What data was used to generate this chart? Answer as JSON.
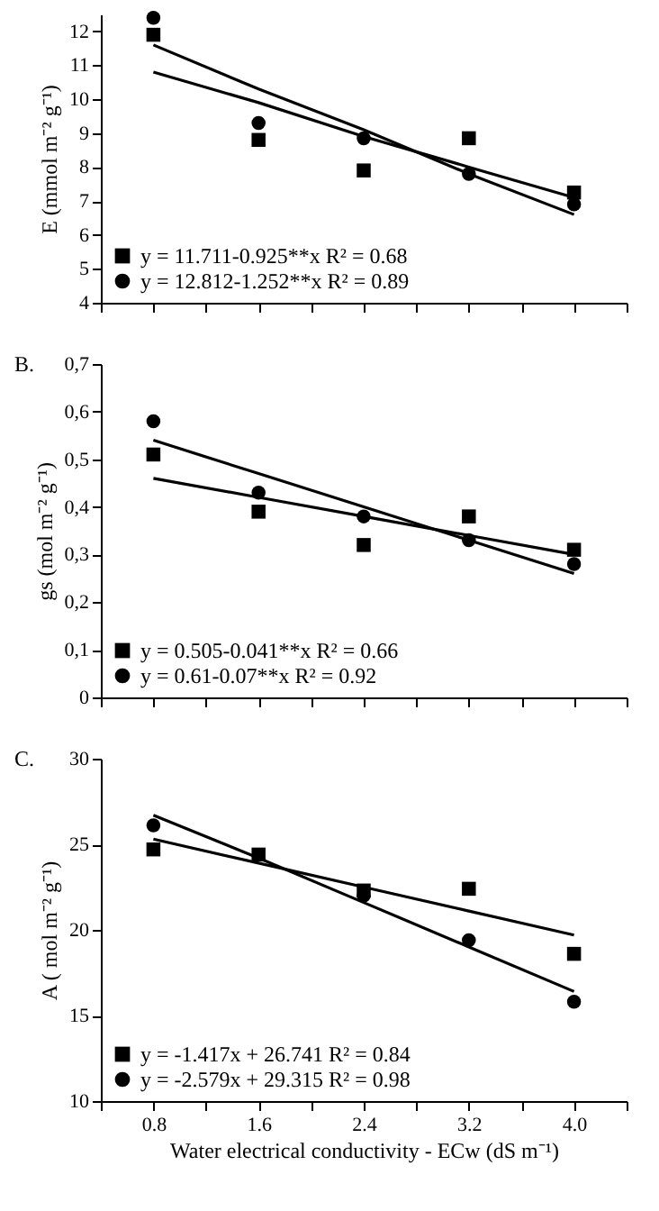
{
  "chart_data": [
    {
      "type": "scatter",
      "ylabel": "E (mmol m⁻² g⁻¹)",
      "x": [
        0.8,
        1.6,
        2.4,
        3.2,
        4.0
      ],
      "xlim": [
        0.4,
        4.4
      ],
      "xticks": [
        {
          "value": 0.4,
          "label": null
        },
        {
          "value": 0.8,
          "label": null
        },
        {
          "value": 1.2,
          "label": null
        },
        {
          "value": 1.6,
          "label": null
        },
        {
          "value": 2.0,
          "label": null
        },
        {
          "value": 2.4,
          "label": null
        },
        {
          "value": 2.8,
          "label": null
        },
        {
          "value": 3.2,
          "label": null
        },
        {
          "value": 3.6,
          "label": null
        },
        {
          "value": 4.0,
          "label": null
        },
        {
          "value": 4.4,
          "label": null
        }
      ],
      "ylim": [
        4,
        12.5
      ],
      "yticks": [
        4,
        5,
        6,
        7,
        8,
        9,
        10,
        11,
        12
      ],
      "tick_labels": "y",
      "grid": false,
      "legend": "bottom left",
      "series": [
        {
          "name": "y = 11.711-0.925**x  R² = 0.68",
          "marker": "square",
          "color": "#000000",
          "values": [
            11.9,
            8.8,
            7.9,
            8.85,
            7.25
          ]
        },
        {
          "name": "y = 12.812-1.252**x  R² = 0.89",
          "marker": "circle",
          "color": "#000000",
          "values": [
            12.4,
            9.3,
            8.85,
            7.8,
            6.9
          ]
        },
        {
          "type": "line",
          "color": "#000000",
          "line_style": "solid",
          "values": [
            10.8,
            9.9,
            8.9,
            8.0,
            7.1
          ]
        },
        {
          "type": "line",
          "color": "#000000",
          "line_style": "solid",
          "values": [
            11.6,
            10.3,
            9.1,
            7.8,
            6.6
          ]
        }
      ]
    },
    {
      "type": "scatter",
      "ylabel": "gs (mol m⁻² g⁻¹)",
      "annotations": [
        "B."
      ],
      "x": [
        0.8,
        1.6,
        2.4,
        3.2,
        4.0
      ],
      "xlim": [
        0.4,
        4.4
      ],
      "xticks": [
        {
          "value": 0.4,
          "label": null
        },
        {
          "value": 0.8,
          "label": null
        },
        {
          "value": 1.2,
          "label": null
        },
        {
          "value": 1.6,
          "label": null
        },
        {
          "value": 2.0,
          "label": null
        },
        {
          "value": 2.4,
          "label": null
        },
        {
          "value": 2.8,
          "label": null
        },
        {
          "value": 3.2,
          "label": null
        },
        {
          "value": 3.6,
          "label": null
        },
        {
          "value": 4.0,
          "label": null
        },
        {
          "value": 4.4,
          "label": null
        }
      ],
      "ylim": [
        0,
        0.7
      ],
      "yticks": [
        0,
        {
          "value": 0.1,
          "label": "0,1"
        },
        {
          "value": 0.2,
          "label": "0,2"
        },
        {
          "value": 0.3,
          "label": "0,3"
        },
        {
          "value": 0.4,
          "label": "0,4"
        },
        {
          "value": 0.5,
          "label": "0,5"
        },
        {
          "value": 0.6,
          "label": "0,6"
        },
        {
          "value": 0.7,
          "label": "0,7"
        }
      ],
      "tick_labels": "y",
      "grid": false,
      "legend": "bottom left",
      "series": [
        {
          "name": "y = 0.505-0.041**x  R² = 0.66",
          "marker": "square",
          "color": "#000000",
          "values": [
            0.51,
            0.39,
            0.32,
            0.38,
            0.31
          ]
        },
        {
          "name": "y = 0.61-0.07**x  R² = 0.92",
          "marker": "circle",
          "color": "#000000",
          "values": [
            0.58,
            0.43,
            0.38,
            0.33,
            0.28
          ]
        },
        {
          "type": "line",
          "color": "#000000",
          "line_style": "solid",
          "values": [
            0.46,
            0.42,
            0.38,
            0.34,
            0.3
          ]
        },
        {
          "type": "line",
          "color": "#000000",
          "line_style": "solid",
          "values": [
            0.54,
            0.47,
            0.4,
            0.33,
            0.26
          ]
        }
      ]
    },
    {
      "type": "scatter",
      "ylabel": "A ( mol m⁻² g⁻¹)",
      "xlabel": "Water electrical  conductivity - ECw (dS m⁻¹)",
      "annotations": [
        "C."
      ],
      "x": [
        0.8,
        1.6,
        2.4,
        3.2,
        4.0
      ],
      "xlim": [
        0.4,
        4.4
      ],
      "xticks": [
        {
          "value": 0.4,
          "label": null
        },
        0.8,
        {
          "value": 1.2,
          "label": null
        },
        1.6,
        {
          "value": 2.0,
          "label": null
        },
        2.4,
        {
          "value": 2.8,
          "label": null
        },
        3.2,
        {
          "value": 3.6,
          "label": null
        },
        {
          "value": 4.0,
          "label": "4.0"
        },
        {
          "value": 4.4,
          "label": null
        }
      ],
      "ylim": [
        10,
        30
      ],
      "yticks": [
        10,
        15,
        20,
        25,
        30
      ],
      "grid": false,
      "legend": "bottom left",
      "series": [
        {
          "name": "y = -1.417x + 26.741 R² = 0.84",
          "marker": "square",
          "color": "#000000",
          "values": [
            24.7,
            24.4,
            22.3,
            22.4,
            18.6
          ]
        },
        {
          "name": "y = -2.579x + 29.315 R² = 0.98",
          "marker": "circle",
          "color": "#000000",
          "values": [
            26.1,
            null,
            22.0,
            19.4,
            15.8
          ]
        },
        {
          "type": "line",
          "color": "#000000",
          "line_style": "solid",
          "values": [
            25.3,
            23.9,
            22.5,
            21.1,
            19.7
          ]
        },
        {
          "type": "line",
          "color": "#000000",
          "line_style": "solid",
          "values": [
            26.7,
            24.2,
            21.6,
            19.0,
            16.4
          ]
        }
      ]
    }
  ]
}
